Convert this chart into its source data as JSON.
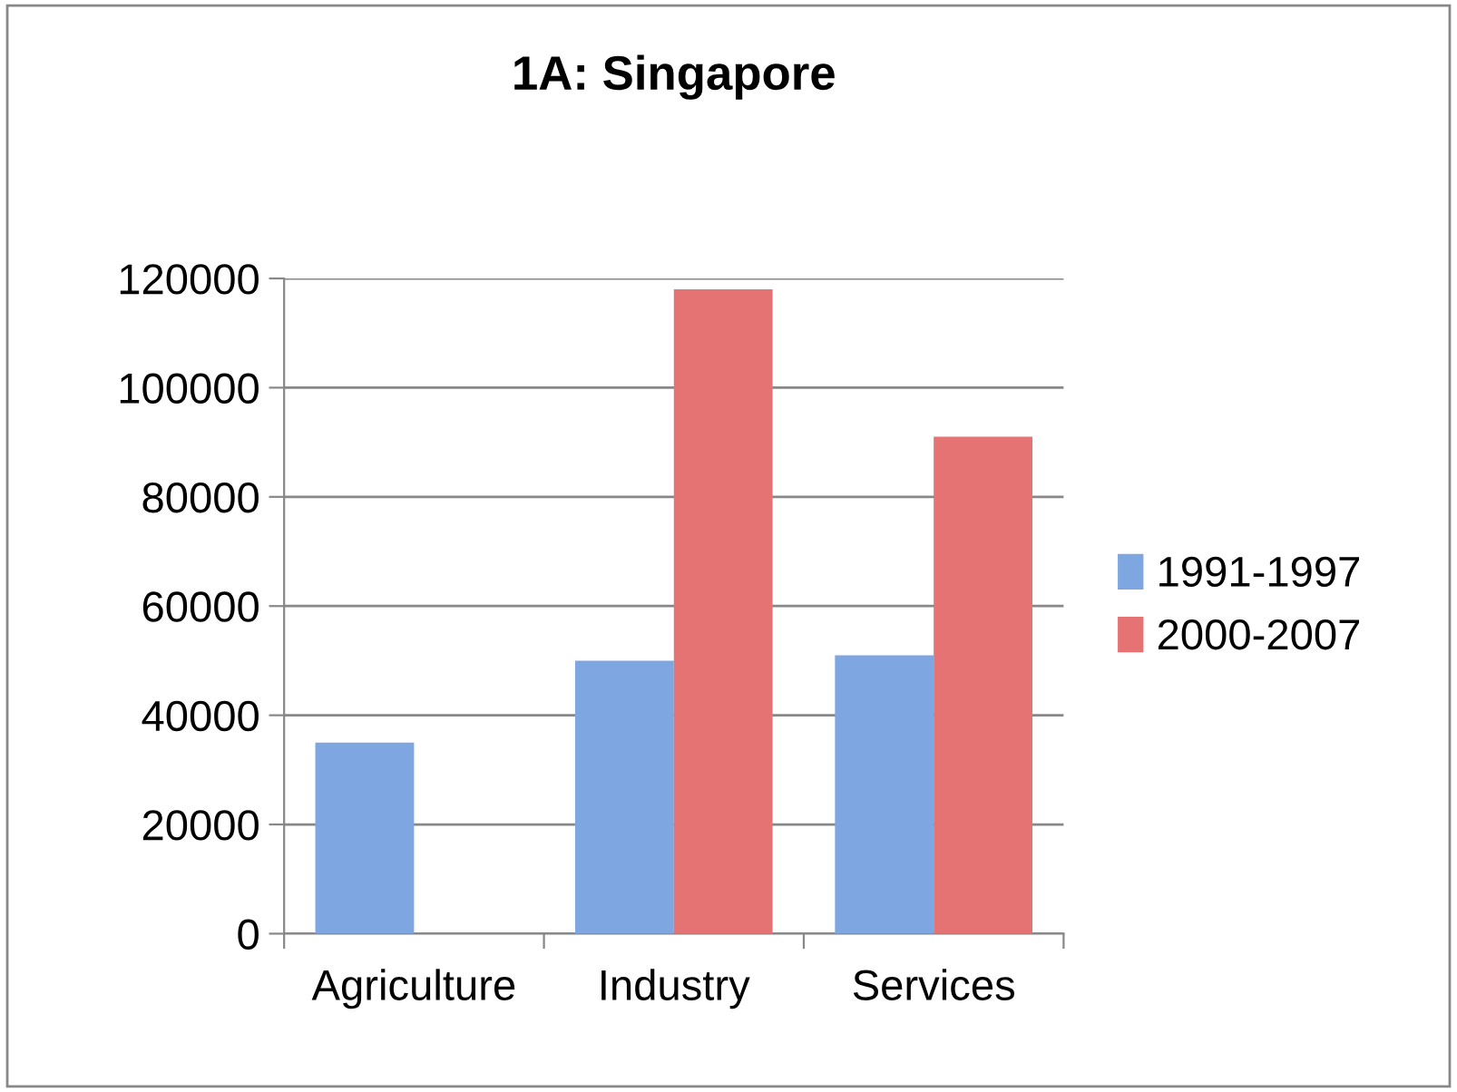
{
  "chart_data": {
    "type": "bar",
    "title": "1A: Singapore",
    "categories": [
      "Agriculture",
      "Industry",
      "Services"
    ],
    "series": [
      {
        "name": "1991-1997",
        "color": "#7ea6e0",
        "values": [
          35000,
          50000,
          51000
        ]
      },
      {
        "name": "2000-2007",
        "color": "#e57373",
        "values": [
          null,
          118000,
          91000
        ]
      }
    ],
    "ylim": [
      0,
      120000
    ],
    "yticks": [
      0,
      20000,
      40000,
      60000,
      80000,
      100000,
      120000
    ],
    "grid": "y",
    "legend": "right"
  }
}
